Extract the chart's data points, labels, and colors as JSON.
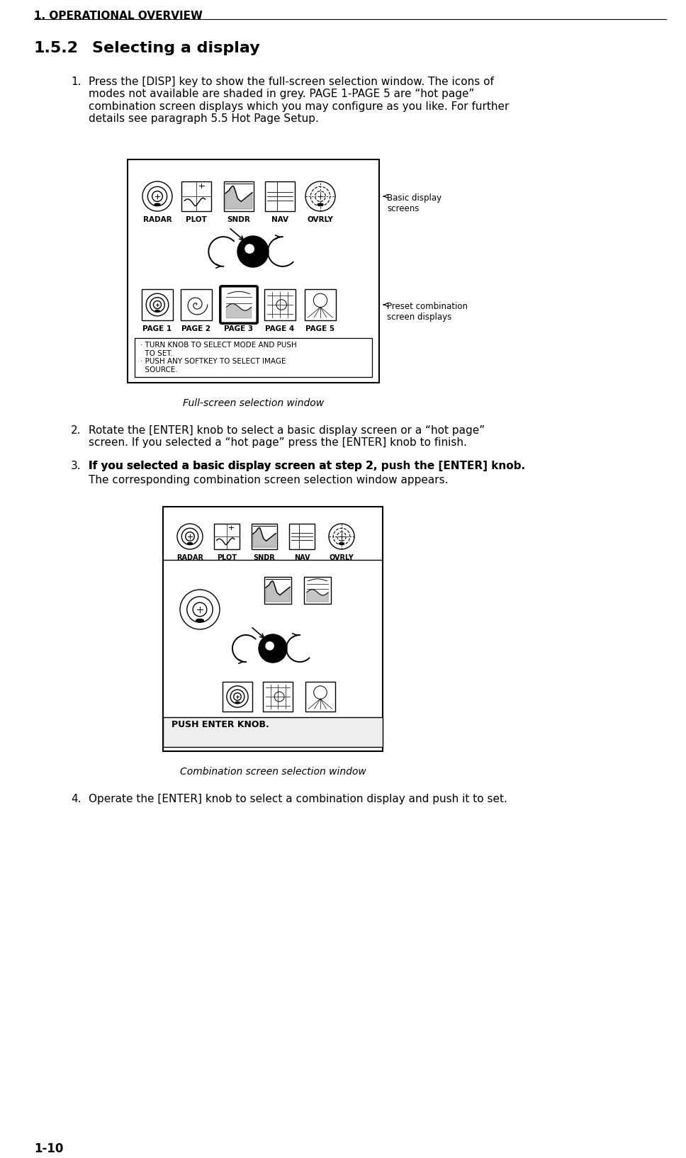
{
  "page_header": "1. OPERATIONAL OVERVIEW",
  "section": "1.5.2",
  "section_title": "Selecting a display",
  "page_number": "1-10",
  "bg_color": "#ffffff",
  "text_color": "#000000",
  "body_font_size": 11,
  "step1_text": "Press the [DISP] key to show the full-screen selection window. The icons of\nmodes not available are shaded in grey. PAGE 1-PAGE 5 are “hot page”\ncombination screen displays which you may configure as you like. For further\ndetails see paragraph 5.5 Hot Page Setup.",
  "step2_text": "Rotate the [ENTER] knob to select a basic display screen or a “hot page”\nscreen. If you selected a “hot page” press the [ENTER] knob to finish.",
  "step3_text_normal": "If you selected a basic display screen at step 2,",
  "step3_text_bold": " push the [ENTER] knob.",
  "step3_text2": "The corresponding combination screen selection window appears.",
  "step4_text": "Operate the [ENTER] knob to select a combination display and push it to set.",
  "fig1_caption": "Full-screen selection window",
  "fig2_caption": "Combination screen selection window",
  "basic_labels": [
    "RADAR",
    "PLOT",
    "SNDR",
    "NAV",
    "OVRLY"
  ],
  "page_labels": [
    "PAGE 1",
    "PAGE 2",
    "PAGE 3",
    "PAGE 4",
    "PAGE 5"
  ],
  "basic_label1": "Basic display\nscreens",
  "basic_label2": "Preset combination\nscreen displays",
  "instr_text": "· TURN KNOB TO SELECT MODE AND PUSH\n  TO SET.\n· PUSH ANY SOFTKEY TO SELECT IMAGE\n  SOURCE.",
  "combo_instruction": "PUSH ENTER KNOB.",
  "combo_labels": [
    "RADAR",
    "PLOT",
    "SNDR",
    "NAV",
    "OVRLY"
  ]
}
